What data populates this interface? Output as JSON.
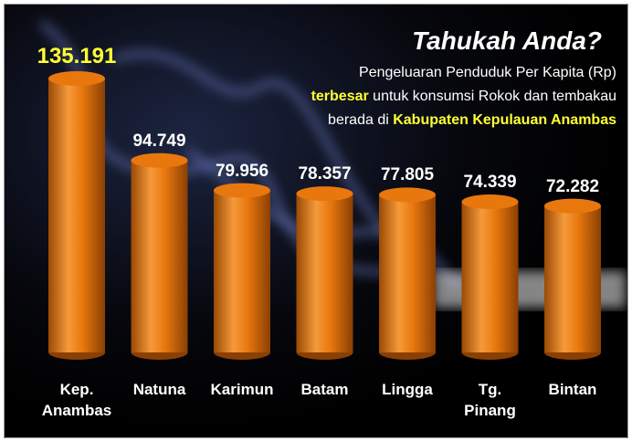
{
  "chart_data": {
    "type": "bar",
    "title": "Tahukah Anda?",
    "subtitle": [
      "Pengeluaran Penduduk Per Kapita (Rp)",
      [
        "terbesar",
        " untuk konsumsi Rokok dan tembakau"
      ],
      [
        "berada di ",
        "Kabupaten Kepulauan Anambas"
      ]
    ],
    "categories": [
      "Kep. Anambas",
      "Natuna",
      "Karimun",
      "Batam",
      "Lingga",
      "Tg. Pinang",
      "Bintan"
    ],
    "values": [
      135191,
      94749,
      79956,
      78357,
      77805,
      74339,
      72282
    ],
    "value_labels": [
      "135.191",
      "94.749",
      "79.956",
      "78.357",
      "77.805",
      "74.339",
      "72.282"
    ],
    "color": "#e8780e"
  }
}
